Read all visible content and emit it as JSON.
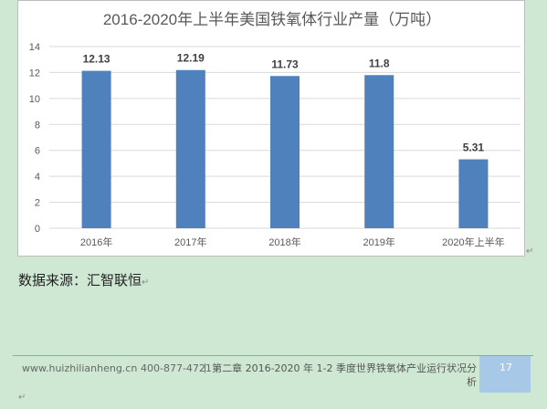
{
  "chart_data": {
    "type": "bar",
    "title": "2016-2020年上半年美国铁氧体行业产量（万吨）",
    "categories": [
      "2016年",
      "2017年",
      "2018年",
      "2019年",
      "2020年上半年"
    ],
    "values": [
      12.13,
      12.19,
      11.73,
      11.8,
      5.31
    ],
    "value_labels": [
      "12.13",
      "12.19",
      "11.73",
      "11.8",
      "5.31"
    ],
    "ylim": [
      0,
      14
    ],
    "yticks": [
      "0",
      "2",
      "4",
      "6",
      "8",
      "10",
      "12",
      "14"
    ],
    "xlabel": "",
    "ylabel": "",
    "grid": true,
    "bar_color": "#4f81bd"
  },
  "source_text": "数据来源：汇智联恒",
  "footer": {
    "website": "www.huizhilianheng.cn",
    "phone": "400-877-4721",
    "separator": "|",
    "chapter": "第二章 2016-2020 年 1-2 季度世界铁氧体产业运行状况分析",
    "page": "17"
  },
  "paragraph_mark": "↵"
}
